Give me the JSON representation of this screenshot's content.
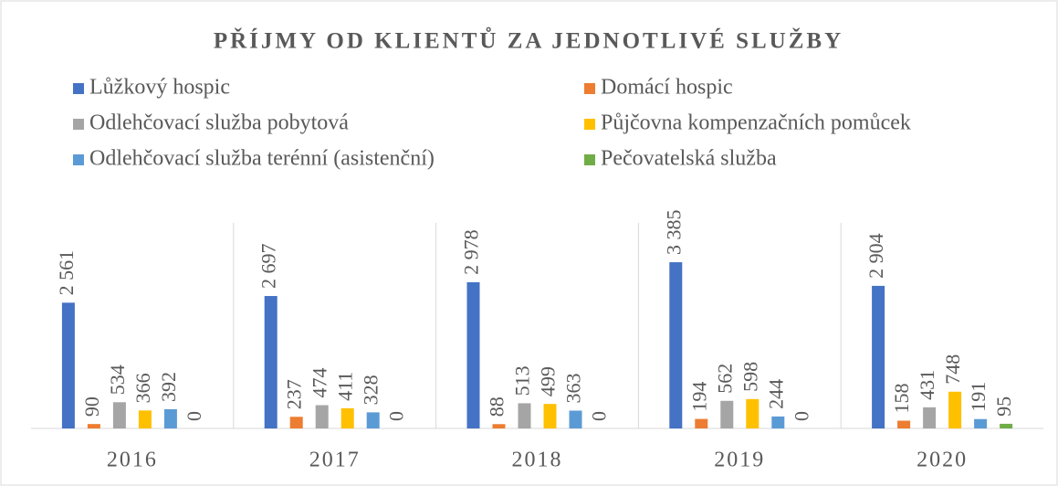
{
  "chart_data": {
    "type": "bar",
    "title": "PŘÍJMY OD KLIENTŮ ZA JEDNOTLIVÉ SLUŽBY",
    "categories": [
      "2016",
      "2017",
      "2018",
      "2019",
      "2020"
    ],
    "series": [
      {
        "name": "Lůžkový hospic",
        "color": "#4472c4",
        "values": [
          2561,
          2697,
          2978,
          3385,
          2904
        ],
        "value_labels": [
          "2 561",
          "2 697",
          "2 978",
          "3 385",
          "2 904"
        ]
      },
      {
        "name": "Domácí hospic",
        "color": "#ed7d31",
        "values": [
          90,
          237,
          88,
          194,
          158
        ]
      },
      {
        "name": "Odlehčovací služba pobytová",
        "color": "#a5a5a5",
        "values": [
          534,
          474,
          513,
          562,
          431
        ]
      },
      {
        "name": "Půjčovna kompenzačních pomůcek",
        "color": "#ffc000",
        "values": [
          366,
          411,
          499,
          598,
          748
        ]
      },
      {
        "name": "Odlehčovací služba terénní (asistenční)",
        "color": "#5b9bd5",
        "values": [
          392,
          328,
          363,
          244,
          191
        ]
      },
      {
        "name": "Pečovatelská služba",
        "color": "#70ad47",
        "values": [
          0,
          0,
          0,
          0,
          95
        ]
      }
    ],
    "ylim": [
      0,
      4000
    ]
  }
}
